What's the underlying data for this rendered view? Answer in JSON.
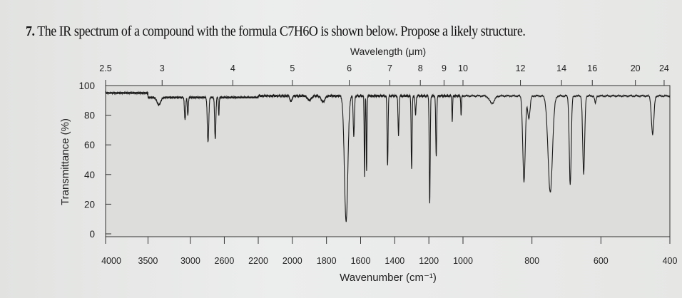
{
  "question": {
    "number": "7.",
    "text": "The IR spectrum of a compound with the formula C7H6O is shown below. Propose a likely structure."
  },
  "chart_data": {
    "type": "line",
    "title": "",
    "top_axis_label": "Wavelength (μm)",
    "xlabel": "Wavenumber (cm⁻¹)",
    "ylabel": "Transmittance (%)",
    "xlim": [
      4000,
      400
    ],
    "ylim": [
      0,
      100
    ],
    "grid": false,
    "x_ticks": [
      4000,
      3500,
      3000,
      2600,
      2200,
      2000,
      1800,
      1600,
      1400,
      1200,
      1000,
      800,
      600,
      400
    ],
    "y_ticks": [
      0,
      20,
      40,
      60,
      80,
      100
    ],
    "top_ticks": [
      "2.5",
      "3",
      "4",
      "5",
      "6",
      "7",
      "8",
      "9",
      "10",
      "12",
      "14",
      "16",
      "20",
      "24"
    ],
    "baseline_transmittance": 93,
    "series": [
      {
        "color": "#1a1a1a",
        "peaks": [
          {
            "wavenumber": 3372,
            "transmittance": 88,
            "width": 30
          },
          {
            "wavenumber": 3063,
            "transmittance": 78,
            "width": 10
          },
          {
            "wavenumber": 3030,
            "transmittance": 81,
            "width": 8
          },
          {
            "wavenumber": 2792,
            "transmittance": 63,
            "width": 12
          },
          {
            "wavenumber": 2707,
            "transmittance": 65,
            "width": 10
          },
          {
            "wavenumber": 2665,
            "transmittance": 81,
            "width": 6
          },
          {
            "wavenumber": 2008,
            "transmittance": 89,
            "width": 8
          },
          {
            "wavenumber": 1900,
            "transmittance": 90,
            "width": 15
          },
          {
            "wavenumber": 1820,
            "transmittance": 89,
            "width": 15
          },
          {
            "wavenumber": 1685,
            "transmittance": 8,
            "width": 14
          },
          {
            "wavenumber": 1640,
            "transmittance": 66,
            "width": 5
          },
          {
            "wavenumber": 1577,
            "transmittance": 39,
            "width": 3
          },
          {
            "wavenumber": 1565,
            "transmittance": 42,
            "width": 3
          },
          {
            "wavenumber": 1442,
            "transmittance": 46,
            "width": 4
          },
          {
            "wavenumber": 1378,
            "transmittance": 66,
            "width": 4
          },
          {
            "wavenumber": 1301,
            "transmittance": 44,
            "width": 4
          },
          {
            "wavenumber": 1278,
            "transmittance": 80,
            "width": 4
          },
          {
            "wavenumber": 1195,
            "transmittance": 20,
            "width": 4
          },
          {
            "wavenumber": 1157,
            "transmittance": 52,
            "width": 4
          },
          {
            "wavenumber": 1063,
            "transmittance": 76,
            "width": 3
          },
          {
            "wavenumber": 1011,
            "transmittance": 80,
            "width": 3
          },
          {
            "wavenumber": 916,
            "transmittance": 88,
            "width": 10
          },
          {
            "wavenumber": 823,
            "transmittance": 35,
            "width": 5
          },
          {
            "wavenumber": 809,
            "transmittance": 78,
            "width": 5
          },
          {
            "wavenumber": 747,
            "transmittance": 28,
            "width": 9
          },
          {
            "wavenumber": 689,
            "transmittance": 33,
            "width": 4
          },
          {
            "wavenumber": 650,
            "transmittance": 40,
            "width": 4
          },
          {
            "wavenumber": 616,
            "transmittance": 88,
            "width": 3
          },
          {
            "wavenumber": 450,
            "transmittance": 67,
            "width": 5
          }
        ]
      }
    ]
  }
}
